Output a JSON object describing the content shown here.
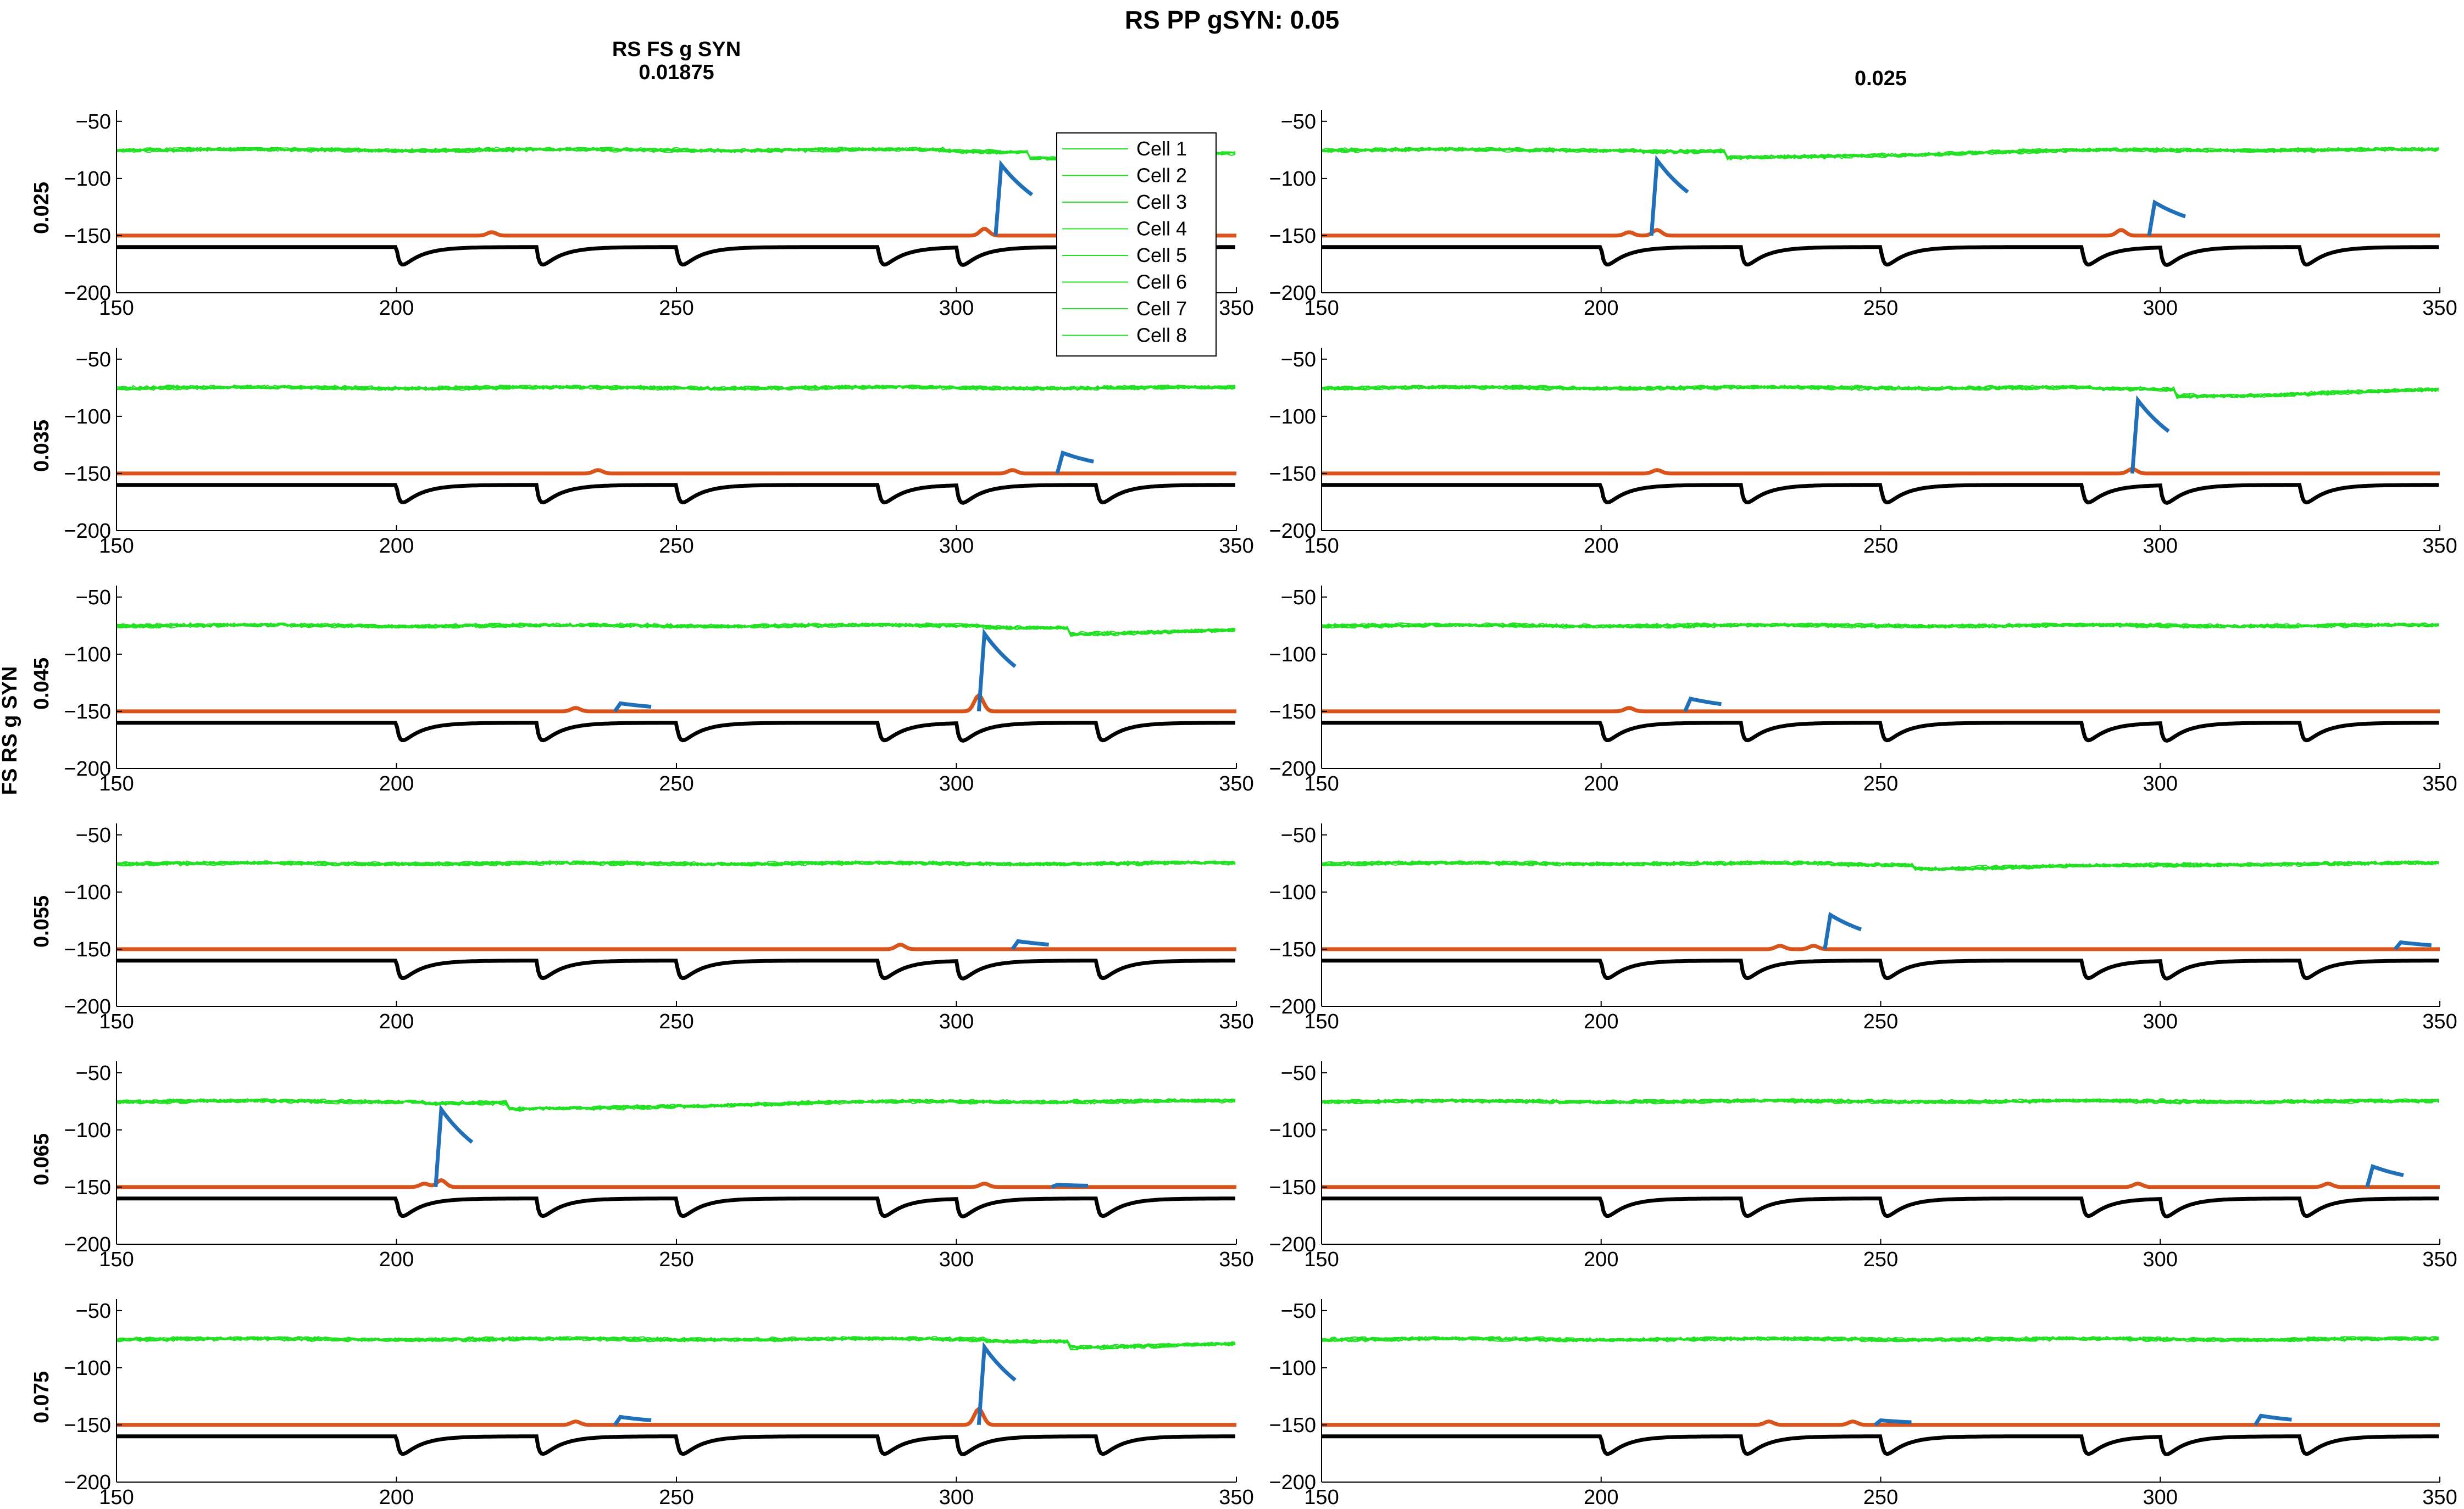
{
  "figure": {
    "suptitle": "RS PP gSYN: 0.05",
    "column_titles": [
      "RS FS g SYN\n0.01875",
      "0.025"
    ],
    "row_labels": [
      "0.025",
      "0.035",
      "0.045",
      "0.055",
      "0.065",
      "0.075"
    ],
    "y_label": "FS RS g SYN"
  },
  "legend": {
    "entries": [
      "Cell 1",
      "Cell 2",
      "Cell 3",
      "Cell 4",
      "Cell 5",
      "Cell 6",
      "Cell 7",
      "Cell 8"
    ],
    "color": "#22e022",
    "location": "top-left column, right edge of first panel"
  },
  "colors": {
    "green_trace": "#22e022",
    "blue_trace": "#1f70b8",
    "orange_trace": "#d9541a",
    "black_trace": "#000000"
  },
  "chart_data": {
    "type": "line",
    "description_axes": {
      "xlim": [
        150,
        350
      ],
      "ylim": [
        -200,
        -40
      ],
      "xticks": [
        150,
        200,
        250,
        300,
        350
      ],
      "yticks": [
        -50,
        -100,
        -150,
        -200
      ],
      "grid": false
    },
    "baselines": {
      "green": -75,
      "orange": -150,
      "black": -160
    },
    "black_inhibition_times": {
      "left": [
        200,
        225,
        250,
        286,
        300,
        325
      ],
      "right": [
        200,
        225,
        250,
        286,
        300,
        325
      ]
    },
    "panels": [
      {
        "row": 0,
        "col": 0,
        "blue_spikes": [
          [
            308,
            -88
          ]
        ],
        "blue_cut": 323,
        "orange_bumps": [
          [
            217,
            -147
          ],
          [
            305,
            -144
          ]
        ],
        "green_dips": [
          [
            313,
            -82
          ]
        ]
      },
      {
        "row": 0,
        "col": 1,
        "blue_spikes": [
          [
            210,
            -84
          ],
          [
            299,
            -121
          ]
        ],
        "blue_cut": null,
        "orange_bumps": [
          [
            205,
            -147
          ],
          [
            210,
            -145
          ],
          [
            293,
            -145
          ]
        ],
        "green_dips": [
          [
            222,
            -82
          ]
        ]
      },
      {
        "row": 1,
        "col": 0,
        "blue_spikes": [
          [
            319,
            -132
          ]
        ],
        "blue_cut": null,
        "orange_bumps": [
          [
            236,
            -147
          ],
          [
            310,
            -147
          ]
        ],
        "green_dips": []
      },
      {
        "row": 1,
        "col": 1,
        "blue_spikes": [
          [
            296,
            -86
          ]
        ],
        "blue_cut": null,
        "orange_bumps": [
          [
            210,
            -147
          ],
          [
            295,
            -146
          ]
        ],
        "green_dips": [
          [
            303,
            -82
          ]
        ]
      },
      {
        "row": 2,
        "col": 0,
        "blue_spikes": [
          [
            240,
            -143
          ],
          [
            305,
            -82
          ]
        ],
        "blue_cut": null,
        "orange_bumps": [
          [
            232,
            -147
          ],
          [
            304,
            -136
          ]
        ],
        "green_dips": [
          [
            320,
            -82
          ]
        ]
      },
      {
        "row": 2,
        "col": 1,
        "blue_spikes": [
          [
            216,
            -139
          ]
        ],
        "blue_cut": null,
        "orange_bumps": [
          [
            205,
            -147
          ]
        ],
        "green_dips": []
      },
      {
        "row": 3,
        "col": 0,
        "blue_spikes": [
          [
            311,
            -143
          ]
        ],
        "blue_cut": null,
        "orange_bumps": [
          [
            290,
            -146
          ]
        ],
        "green_dips": []
      },
      {
        "row": 3,
        "col": 1,
        "blue_spikes": [
          [
            241,
            -120
          ],
          [
            343,
            -144
          ]
        ],
        "blue_cut": null,
        "orange_bumps": [
          [
            232,
            -147
          ],
          [
            238,
            -147
          ]
        ],
        "green_dips": [
          [
            256,
            -79
          ]
        ]
      },
      {
        "row": 4,
        "col": 0,
        "blue_spikes": [
          [
            208,
            -82
          ],
          [
            318,
            -148
          ]
        ],
        "blue_cut": null,
        "orange_bumps": [
          [
            205,
            -147
          ],
          [
            208,
            -144
          ],
          [
            305,
            -147
          ]
        ],
        "green_dips": [
          [
            220,
            -82
          ]
        ]
      },
      {
        "row": 4,
        "col": 1,
        "blue_spikes": [
          [
            338,
            -132
          ]
        ],
        "blue_cut": null,
        "orange_bumps": [
          [
            296,
            -147
          ],
          [
            330,
            -147
          ]
        ],
        "green_dips": []
      },
      {
        "row": 5,
        "col": 0,
        "blue_spikes": [
          [
            240,
            -143
          ],
          [
            305,
            -82
          ]
        ],
        "blue_cut": null,
        "orange_bumps": [
          [
            232,
            -147
          ],
          [
            304,
            -136
          ]
        ],
        "green_dips": [
          [
            320,
            -82
          ]
        ]
      },
      {
        "row": 5,
        "col": 1,
        "blue_spikes": [
          [
            250,
            -146
          ],
          [
            318,
            -142
          ]
        ],
        "blue_cut": null,
        "orange_bumps": [
          [
            230,
            -147
          ],
          [
            245,
            -147
          ]
        ],
        "green_dips": []
      }
    ]
  }
}
